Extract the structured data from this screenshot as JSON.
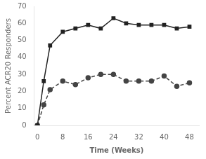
{
  "chart_data": {
    "type": "line",
    "xlabel": "Time (Weeks)",
    "ylabel": "Percent ACR20 Responders",
    "x": [
      0,
      2,
      4,
      8,
      12,
      16,
      20,
      24,
      28,
      32,
      36,
      40,
      44,
      48
    ],
    "series": [
      {
        "color": "#222222",
        "marker": "square",
        "line_style": "solid",
        "values": [
          0,
          26,
          47,
          55,
          57,
          59,
          57,
          63,
          60,
          59,
          59,
          59,
          57,
          58
        ]
      },
      {
        "color": "#444444",
        "marker": "circle",
        "line_style": "dashed",
        "values": [
          0,
          12,
          21,
          26,
          24,
          28,
          30,
          30,
          26,
          26,
          26,
          29,
          23,
          25
        ]
      }
    ],
    "xlim": [
      -1,
      51
    ],
    "ylim": [
      0,
      70
    ],
    "xticks": [
      0,
      8,
      16,
      24,
      32,
      40,
      48
    ],
    "yticks": [
      0,
      10,
      20,
      30,
      40,
      50,
      60,
      70
    ],
    "grid": false
  }
}
